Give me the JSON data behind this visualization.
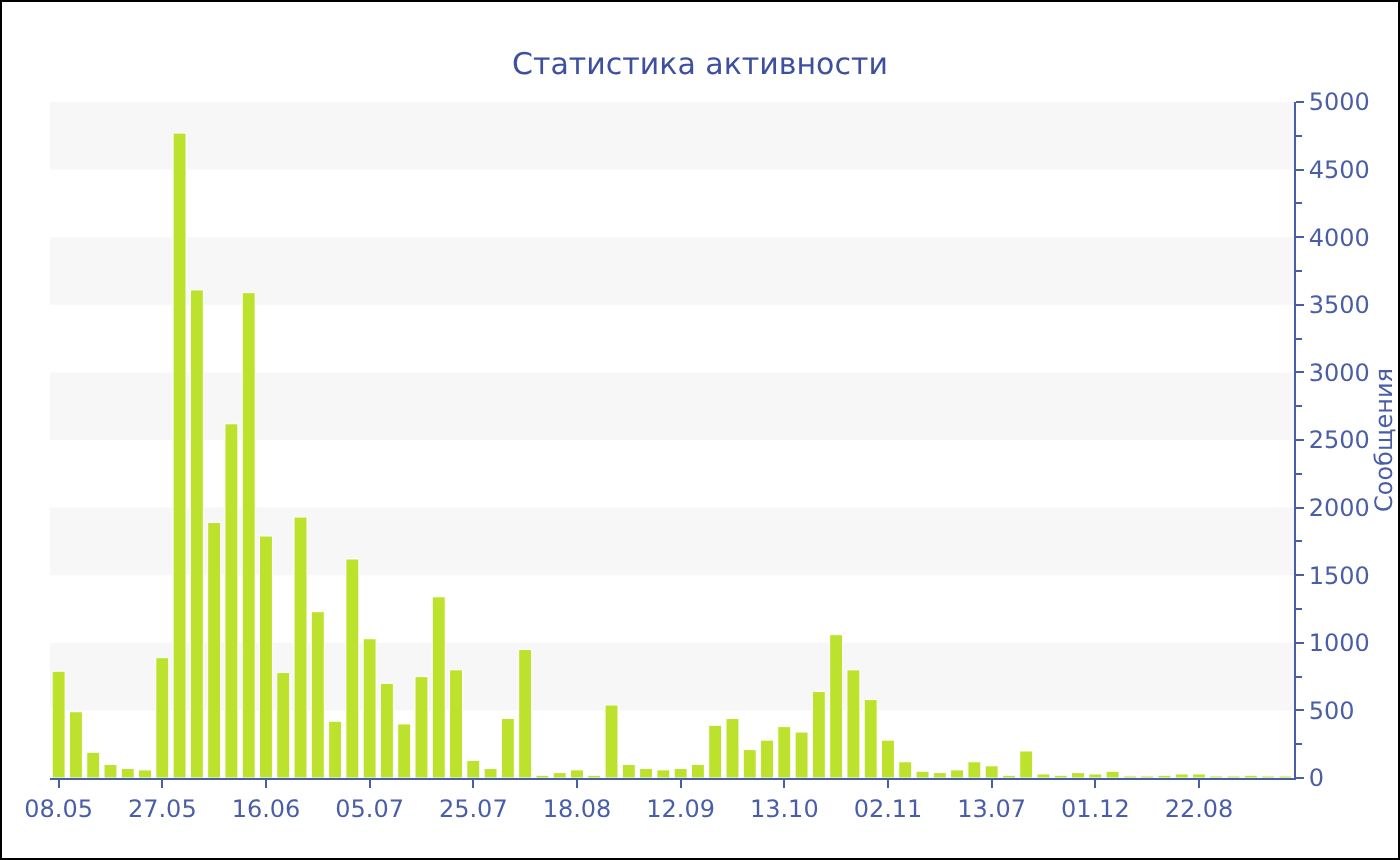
{
  "chart_data": {
    "type": "bar",
    "title": "Статистика активности",
    "ylabel": "Сообщения",
    "categories": [
      "08.05",
      null,
      null,
      null,
      null,
      null,
      "27.05",
      null,
      null,
      null,
      null,
      null,
      "16.06",
      null,
      null,
      null,
      null,
      null,
      "05.07",
      null,
      null,
      null,
      null,
      null,
      "25.07",
      null,
      null,
      null,
      null,
      null,
      "18.08",
      null,
      null,
      null,
      null,
      null,
      "12.09",
      null,
      null,
      null,
      null,
      null,
      "13.10",
      null,
      null,
      null,
      null,
      null,
      "02.11",
      null,
      null,
      null,
      null,
      null,
      "13.07",
      null,
      null,
      null,
      null,
      null,
      "01.12",
      null,
      null,
      null,
      null,
      null,
      "22.08",
      null,
      null,
      null,
      null,
      null
    ],
    "values": [
      790,
      490,
      190,
      100,
      70,
      60,
      890,
      4770,
      3610,
      1890,
      2620,
      3590,
      1790,
      780,
      1930,
      1230,
      420,
      1620,
      1030,
      700,
      400,
      750,
      1340,
      800,
      130,
      70,
      440,
      950,
      20,
      40,
      60,
      20,
      540,
      100,
      70,
      60,
      70,
      100,
      390,
      440,
      210,
      280,
      380,
      340,
      640,
      1060,
      800,
      580,
      280,
      120,
      50,
      40,
      60,
      120,
      90,
      20,
      200,
      30,
      20,
      40,
      30,
      50,
      15,
      15,
      20,
      30,
      30,
      15,
      15,
      20,
      15,
      15
    ],
    "color": "#bde22e",
    "ylim": [
      0,
      5000
    ],
    "yticks": [
      0,
      500,
      1000,
      1500,
      2000,
      2500,
      3000,
      3500,
      4000,
      4500,
      5000
    ],
    "bands": [
      {
        "axis": "y",
        "from": 500,
        "to": 1000,
        "color": "#f7f7f7"
      },
      {
        "axis": "y",
        "from": 1500,
        "to": 2000,
        "color": "#f7f7f7"
      },
      {
        "axis": "y",
        "from": 2500,
        "to": 3000,
        "color": "#f7f7f7"
      },
      {
        "axis": "y",
        "from": 3500,
        "to": 4000,
        "color": "#f7f7f7"
      },
      {
        "axis": "y",
        "from": 4500,
        "to": 5000,
        "color": "#f7f7f7"
      }
    ]
  }
}
